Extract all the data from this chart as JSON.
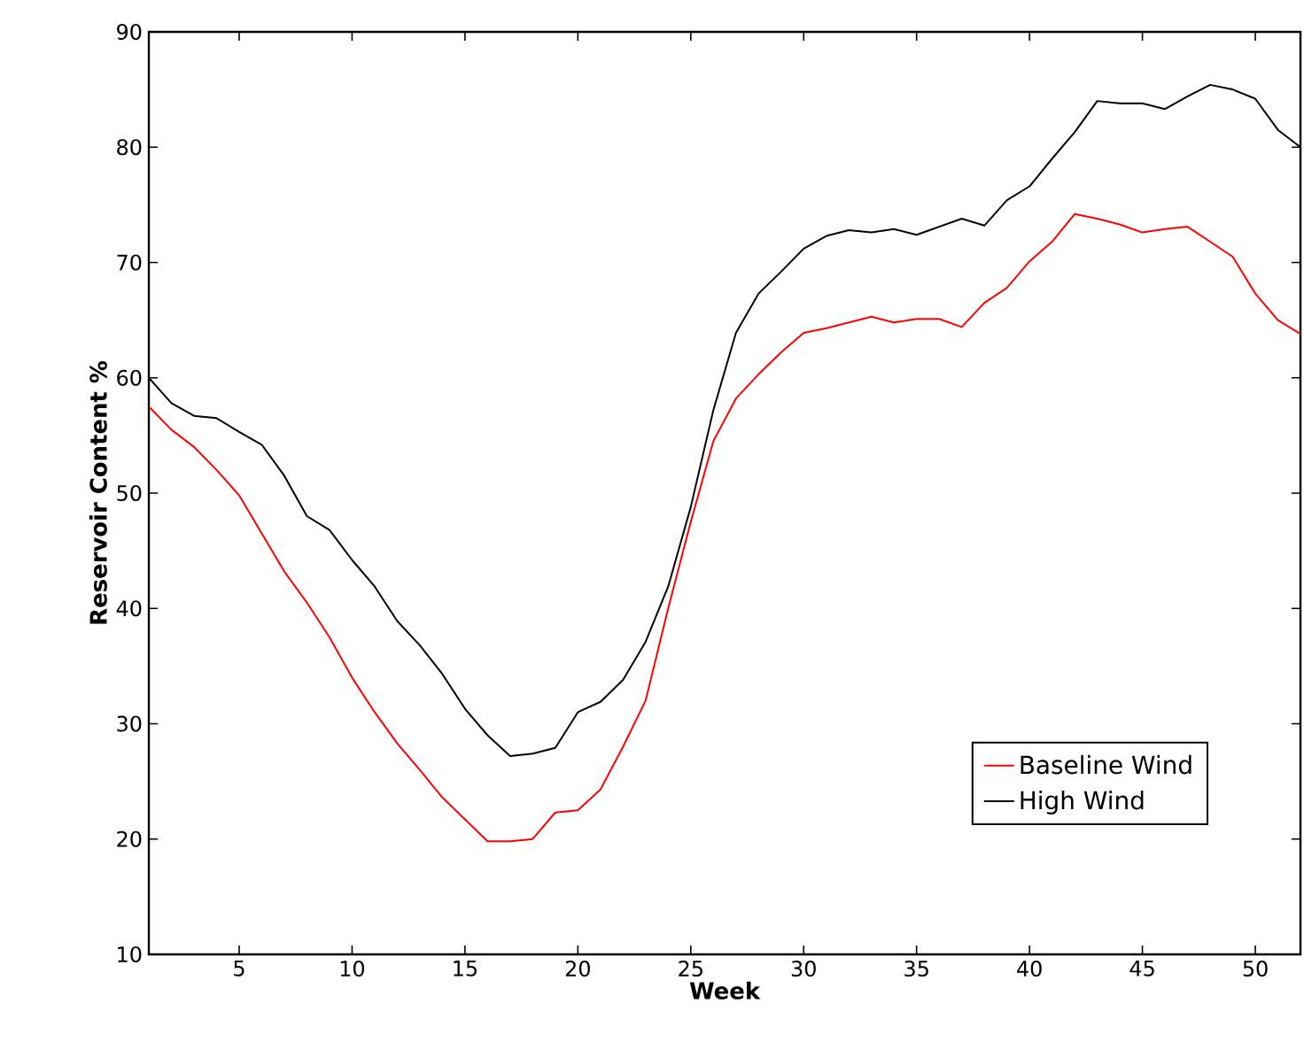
{
  "chart_data": {
    "type": "line",
    "xlabel": "Week",
    "ylabel": "Reservoir Content %",
    "x": [
      1,
      2,
      3,
      4,
      5,
      6,
      7,
      8,
      9,
      10,
      11,
      12,
      13,
      14,
      15,
      16,
      17,
      18,
      19,
      20,
      21,
      22,
      23,
      24,
      25,
      26,
      27,
      28,
      29,
      30,
      31,
      32,
      33,
      34,
      35,
      36,
      37,
      38,
      39,
      40,
      41,
      42,
      43,
      44,
      45,
      46,
      47,
      48,
      49,
      50,
      51,
      52
    ],
    "series": [
      {
        "name": "Baseline Wind",
        "color": "#ff0000",
        "values": [
          57.5,
          55.5,
          54,
          52,
          49.8,
          46.5,
          43.2,
          40.5,
          37.5,
          34,
          31,
          28.3,
          26,
          23.6,
          21.7,
          19.8,
          19.8,
          20,
          22.3,
          22.5,
          24.3,
          28,
          32,
          40,
          47.5,
          54.5,
          58.2,
          60.3,
          62.2,
          63.9,
          64.3,
          64.8,
          65.3,
          64.8,
          65.1,
          65.1,
          64.4,
          66.5,
          67.8,
          70.1,
          71.8,
          74.2,
          73.8,
          73.3,
          72.6,
          72.9,
          73.1,
          71.8,
          70.5,
          67.3,
          65,
          63.8
        ]
      },
      {
        "name": "High Wind",
        "color": "#000000",
        "values": [
          60,
          57.8,
          56.7,
          56.5,
          55.3,
          54.2,
          51.5,
          48,
          46.8,
          44.2,
          41.9,
          38.9,
          36.8,
          34.3,
          31.3,
          29,
          27.2,
          27.4,
          27.9,
          31,
          31.9,
          33.8,
          37.1,
          41.9,
          48.8,
          57.2,
          63.9,
          67.3,
          69.2,
          71.2,
          72.3,
          72.8,
          72.6,
          72.9,
          72.4,
          73.1,
          73.8,
          73.2,
          75.4,
          76.6,
          79,
          81.3,
          84,
          83.8,
          83.8,
          83.3,
          84.4,
          85.4,
          85,
          84.2,
          81.5,
          80
        ]
      }
    ],
    "xlim": [
      1,
      52
    ],
    "ylim": [
      10,
      90
    ],
    "xticks": [
      5,
      10,
      15,
      20,
      25,
      30,
      35,
      40,
      45,
      50
    ],
    "yticks": [
      10,
      20,
      30,
      40,
      50,
      60,
      70,
      80,
      90
    ],
    "grid": false,
    "legend": "bottom right",
    "marker": "none",
    "line_style": "solid"
  }
}
